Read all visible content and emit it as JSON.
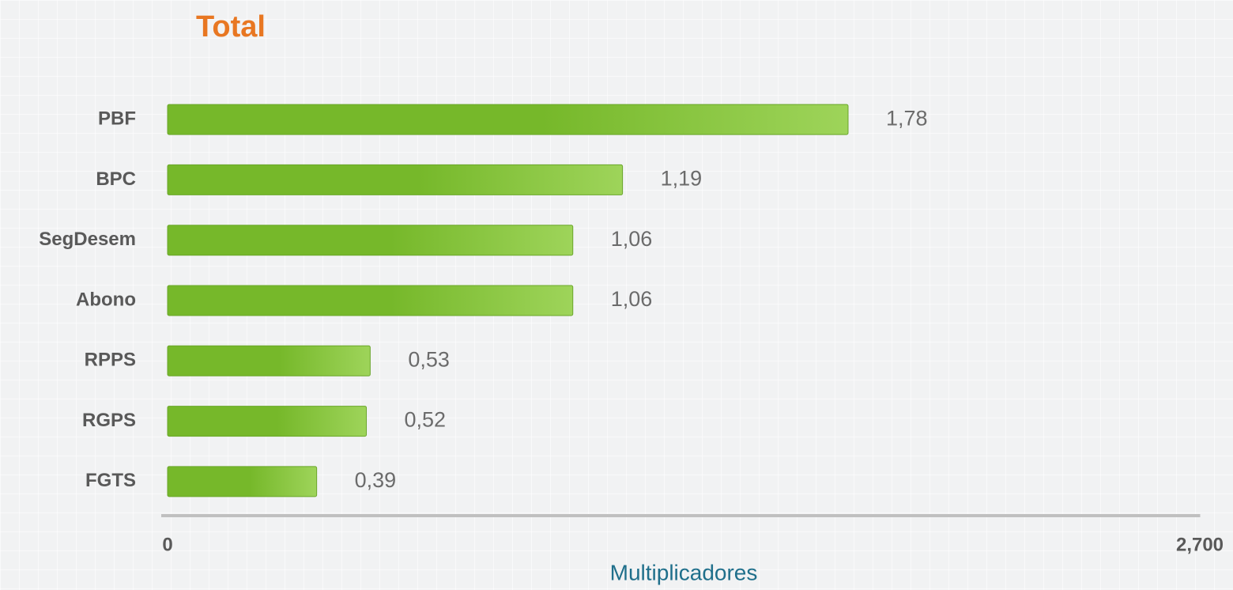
{
  "chart_data": {
    "type": "hbar",
    "title": "Total",
    "xlabel": "Multiplicadores",
    "categories": [
      "PBF",
      "BPC",
      "SegDesem",
      "Abono",
      "RPPS",
      "RGPS",
      "FGTS"
    ],
    "values": [
      1.78,
      1.19,
      1.06,
      1.06,
      0.53,
      0.52,
      0.39
    ],
    "value_labels": [
      "1,78",
      "1,19",
      "1,06",
      "1,06",
      "0,53",
      "0,52",
      "0,39"
    ],
    "color": "#76b82a",
    "xlim": [
      0,
      2.7
    ],
    "xticks": [
      0,
      {
        "value": 2.7,
        "label": "2,700"
      }
    ],
    "grid": false
  }
}
